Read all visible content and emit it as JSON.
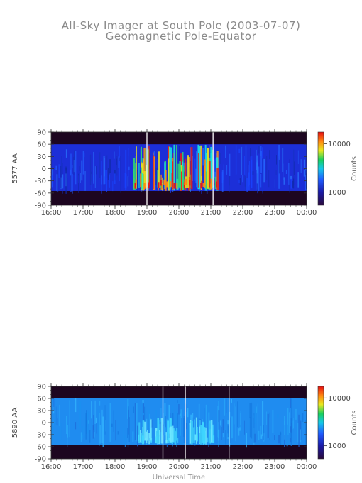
{
  "header": {
    "title": "All-Sky Imager at South Pole (2003-07-07)",
    "subtitle": "Geomagnetic Pole-Equator"
  },
  "chart_data": [
    {
      "type": "heatmap",
      "ylabel": "5577 AA",
      "xlabel": "",
      "x_ticks": [
        "16:00",
        "17:00",
        "18:00",
        "19:00",
        "20:00",
        "21:00",
        "22:00",
        "23:00",
        "00:00"
      ],
      "x_range_hours": [
        16,
        24
      ],
      "y_ticks": [
        "90",
        "60",
        "30",
        "0",
        "-30",
        "-60",
        "-90"
      ],
      "ylim": [
        -90,
        90
      ],
      "data_band": [
        -55,
        60
      ],
      "colorbar": {
        "label": "Counts",
        "ticks": [
          "10000",
          "1000"
        ],
        "scale": "log"
      },
      "gaps_ut_hours": [
        19.0,
        21.07
      ],
      "activity_bursts_ut_hours": [
        18.75,
        19.0,
        19.5,
        19.85,
        20.2,
        20.75,
        21.0
      ]
    },
    {
      "type": "heatmap",
      "ylabel": "5890 AA",
      "xlabel": "Universal Time",
      "x_ticks": [
        "16:00",
        "17:00",
        "18:00",
        "19:00",
        "20:00",
        "21:00",
        "22:00",
        "23:00",
        "00:00"
      ],
      "x_range_hours": [
        16,
        24
      ],
      "y_ticks": [
        "90",
        "60",
        "30",
        "0",
        "-30",
        "-60",
        "-90"
      ],
      "ylim": [
        -90,
        90
      ],
      "data_band": [
        -55,
        60
      ],
      "colorbar": {
        "label": "Counts",
        "ticks": [
          "10000",
          "1000"
        ],
        "scale": "log"
      },
      "gaps_ut_hours": [
        19.5,
        20.2,
        21.57
      ],
      "activity_bursts_ut_hours": [
        18.9,
        19.3,
        19.75,
        20.5,
        20.9
      ]
    }
  ]
}
